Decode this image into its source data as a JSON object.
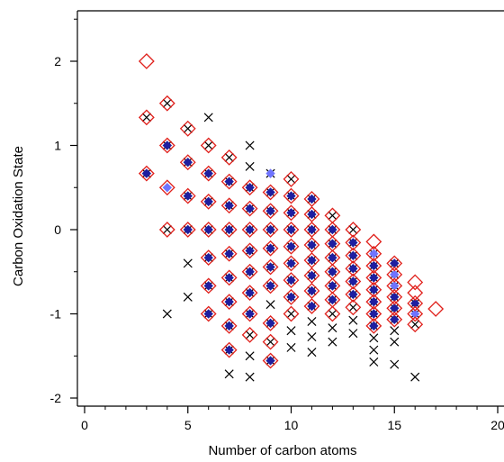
{
  "chart_data": {
    "type": "scatter",
    "title": "",
    "xlabel": "Number of carbon atoms",
    "ylabel": "Carbon Oxidation State",
    "xlim": [
      0,
      20
    ],
    "ylim": [
      -2.2,
      2.55
    ],
    "xticks": [
      0,
      5,
      10,
      15,
      20
    ],
    "xtick_labels": [
      "0",
      "5",
      "10",
      "15",
      "20"
    ],
    "yticks": [
      2,
      1,
      0,
      -1,
      -2
    ],
    "ytick_labels": [
      "2",
      "1",
      "0",
      "-1",
      "-2"
    ],
    "grid": false,
    "legend": "none",
    "colors": {
      "cross": "#000000",
      "diamond": "#e0201b",
      "filled": "#1e1ea0",
      "filled_light": "#6f74ff"
    },
    "series": [
      {
        "marker": "x",
        "color": "#000000",
        "points": [
          [
            3,
            1.333
          ],
          [
            3,
            0.667
          ],
          [
            4,
            1.5
          ],
          [
            4,
            1.0
          ],
          [
            4,
            0.0
          ],
          [
            4,
            -1.0
          ],
          [
            5,
            1.2
          ],
          [
            5,
            0.8
          ],
          [
            5,
            0.4
          ],
          [
            5,
            0.0
          ],
          [
            5,
            -0.4
          ],
          [
            5,
            -0.8
          ],
          [
            6,
            1.333
          ],
          [
            6,
            1.0
          ],
          [
            6,
            0.667
          ],
          [
            6,
            0.333
          ],
          [
            6,
            0.0
          ],
          [
            6,
            -0.333
          ],
          [
            6,
            -0.667
          ],
          [
            6,
            -1.0
          ],
          [
            7,
            0.857
          ],
          [
            7,
            0.571
          ],
          [
            7,
            0.286
          ],
          [
            7,
            0.0
          ],
          [
            7,
            -0.286
          ],
          [
            7,
            -0.571
          ],
          [
            7,
            -0.857
          ],
          [
            7,
            -1.143
          ],
          [
            7,
            -1.429
          ],
          [
            7,
            -1.714
          ],
          [
            8,
            1.0
          ],
          [
            8,
            0.75
          ],
          [
            8,
            0.5
          ],
          [
            8,
            0.25
          ],
          [
            8,
            0.0
          ],
          [
            8,
            -0.25
          ],
          [
            8,
            -0.5
          ],
          [
            8,
            -0.75
          ],
          [
            8,
            -1.0
          ],
          [
            8,
            -1.25
          ],
          [
            8,
            -1.5
          ],
          [
            8,
            -1.75
          ],
          [
            9,
            0.667
          ],
          [
            9,
            0.444
          ],
          [
            9,
            0.222
          ],
          [
            9,
            0.0
          ],
          [
            9,
            -0.222
          ],
          [
            9,
            -0.444
          ],
          [
            9,
            -0.667
          ],
          [
            9,
            -0.889
          ],
          [
            9,
            -1.111
          ],
          [
            9,
            -1.333
          ],
          [
            9,
            -1.556
          ],
          [
            10,
            0.6
          ],
          [
            10,
            0.4
          ],
          [
            10,
            0.2
          ],
          [
            10,
            0.0
          ],
          [
            10,
            -0.2
          ],
          [
            10,
            -0.4
          ],
          [
            10,
            -0.6
          ],
          [
            10,
            -0.8
          ],
          [
            10,
            -1.0
          ],
          [
            10,
            -1.2
          ],
          [
            10,
            -1.4
          ],
          [
            11,
            0.364
          ],
          [
            11,
            0.182
          ],
          [
            11,
            0.0
          ],
          [
            11,
            -0.182
          ],
          [
            11,
            -0.364
          ],
          [
            11,
            -0.545
          ],
          [
            11,
            -0.727
          ],
          [
            11,
            -0.909
          ],
          [
            11,
            -1.091
          ],
          [
            11,
            -1.273
          ],
          [
            11,
            -1.455
          ],
          [
            12,
            0.167
          ],
          [
            12,
            0.0
          ],
          [
            12,
            -0.167
          ],
          [
            12,
            -0.333
          ],
          [
            12,
            -0.5
          ],
          [
            12,
            -0.667
          ],
          [
            12,
            -0.833
          ],
          [
            12,
            -1.0
          ],
          [
            12,
            -1.167
          ],
          [
            12,
            -1.333
          ],
          [
            13,
            0.0
          ],
          [
            13,
            -0.154
          ],
          [
            13,
            -0.308
          ],
          [
            13,
            -0.462
          ],
          [
            13,
            -0.615
          ],
          [
            13,
            -0.769
          ],
          [
            13,
            -0.923
          ],
          [
            13,
            -1.077
          ],
          [
            13,
            -1.231
          ],
          [
            14,
            -0.286
          ],
          [
            14,
            -0.429
          ],
          [
            14,
            -0.571
          ],
          [
            14,
            -0.714
          ],
          [
            14,
            -0.857
          ],
          [
            14,
            -1.0
          ],
          [
            14,
            -1.143
          ],
          [
            14,
            -1.286
          ],
          [
            14,
            -1.429
          ],
          [
            14,
            -1.571
          ],
          [
            15,
            -0.4
          ],
          [
            15,
            -0.533
          ],
          [
            15,
            -0.667
          ],
          [
            15,
            -0.8
          ],
          [
            15,
            -0.933
          ],
          [
            15,
            -1.067
          ],
          [
            15,
            -1.2
          ],
          [
            15,
            -1.333
          ],
          [
            15,
            -1.6
          ],
          [
            16,
            -0.875
          ],
          [
            16,
            -1.0
          ],
          [
            16,
            -1.125
          ],
          [
            16,
            -1.75
          ]
        ]
      },
      {
        "marker": "diamond",
        "color": "#e0201b",
        "points": [
          [
            3,
            2.0
          ],
          [
            3,
            1.333
          ],
          [
            3,
            0.667
          ],
          [
            4,
            1.5
          ],
          [
            4,
            1.0
          ],
          [
            4,
            0.5
          ],
          [
            4,
            0.0
          ],
          [
            5,
            1.2
          ],
          [
            5,
            0.8
          ],
          [
            5,
            0.4
          ],
          [
            5,
            0.0
          ],
          [
            6,
            1.0
          ],
          [
            6,
            0.667
          ],
          [
            6,
            0.333
          ],
          [
            6,
            0.0
          ],
          [
            6,
            -0.333
          ],
          [
            6,
            -0.667
          ],
          [
            6,
            -1.0
          ],
          [
            7,
            0.857
          ],
          [
            7,
            0.571
          ],
          [
            7,
            0.286
          ],
          [
            7,
            0.0
          ],
          [
            7,
            -0.286
          ],
          [
            7,
            -0.571
          ],
          [
            7,
            -0.857
          ],
          [
            7,
            -1.143
          ],
          [
            7,
            -1.429
          ],
          [
            8,
            0.5
          ],
          [
            8,
            0.25
          ],
          [
            8,
            0.0
          ],
          [
            8,
            -0.25
          ],
          [
            8,
            -0.5
          ],
          [
            8,
            -0.75
          ],
          [
            8,
            -1.0
          ],
          [
            8,
            -1.25
          ],
          [
            9,
            0.444
          ],
          [
            9,
            0.222
          ],
          [
            9,
            0.0
          ],
          [
            9,
            -0.222
          ],
          [
            9,
            -0.444
          ],
          [
            9,
            -0.667
          ],
          [
            9,
            -1.111
          ],
          [
            9,
            -1.333
          ],
          [
            9,
            -1.556
          ],
          [
            10,
            0.6
          ],
          [
            10,
            0.4
          ],
          [
            10,
            0.2
          ],
          [
            10,
            0.0
          ],
          [
            10,
            -0.2
          ],
          [
            10,
            -0.4
          ],
          [
            10,
            -0.6
          ],
          [
            10,
            -0.8
          ],
          [
            10,
            -1.0
          ],
          [
            11,
            0.364
          ],
          [
            11,
            0.182
          ],
          [
            11,
            0.0
          ],
          [
            11,
            -0.182
          ],
          [
            11,
            -0.364
          ],
          [
            11,
            -0.545
          ],
          [
            11,
            -0.727
          ],
          [
            11,
            -0.909
          ],
          [
            12,
            0.167
          ],
          [
            12,
            0.0
          ],
          [
            12,
            -0.167
          ],
          [
            12,
            -0.333
          ],
          [
            12,
            -0.5
          ],
          [
            12,
            -0.667
          ],
          [
            12,
            -0.833
          ],
          [
            12,
            -1.0
          ],
          [
            13,
            0.0
          ],
          [
            13,
            -0.154
          ],
          [
            13,
            -0.308
          ],
          [
            13,
            -0.462
          ],
          [
            13,
            -0.615
          ],
          [
            13,
            -0.769
          ],
          [
            13,
            -0.923
          ],
          [
            14,
            -0.143
          ],
          [
            14,
            -0.286
          ],
          [
            14,
            -0.429
          ],
          [
            14,
            -0.571
          ],
          [
            14,
            -0.714
          ],
          [
            14,
            -0.857
          ],
          [
            14,
            -1.0
          ],
          [
            14,
            -1.143
          ],
          [
            15,
            -0.4
          ],
          [
            15,
            -0.533
          ],
          [
            15,
            -0.667
          ],
          [
            15,
            -0.8
          ],
          [
            15,
            -0.933
          ],
          [
            15,
            -1.067
          ],
          [
            16,
            -0.625
          ],
          [
            16,
            -0.75
          ],
          [
            16,
            -0.875
          ],
          [
            16,
            -1.0
          ],
          [
            16,
            -1.125
          ],
          [
            17,
            -0.941
          ]
        ]
      },
      {
        "marker": "filled-diamond",
        "color": "#1e1ea0",
        "points": [
          [
            3,
            0.667
          ],
          [
            4,
            1.0
          ],
          [
            4,
            0.5
          ],
          [
            5,
            0.8
          ],
          [
            5,
            0.4
          ],
          [
            5,
            0.0
          ],
          [
            6,
            0.667
          ],
          [
            6,
            0.333
          ],
          [
            6,
            0.0
          ],
          [
            6,
            -0.333
          ],
          [
            6,
            -0.667
          ],
          [
            6,
            -1.0
          ],
          [
            7,
            0.571
          ],
          [
            7,
            0.286
          ],
          [
            7,
            0.0
          ],
          [
            7,
            -0.286
          ],
          [
            7,
            -0.571
          ],
          [
            7,
            -0.857
          ],
          [
            7,
            -1.143
          ],
          [
            7,
            -1.429
          ],
          [
            8,
            0.5
          ],
          [
            8,
            0.25
          ],
          [
            8,
            0.0
          ],
          [
            8,
            -0.25
          ],
          [
            8,
            -0.5
          ],
          [
            8,
            -0.75
          ],
          [
            8,
            -1.0
          ],
          [
            9,
            0.667
          ],
          [
            9,
            0.444
          ],
          [
            9,
            0.222
          ],
          [
            9,
            0.0
          ],
          [
            9,
            -0.222
          ],
          [
            9,
            -0.444
          ],
          [
            9,
            -0.667
          ],
          [
            9,
            -1.111
          ],
          [
            9,
            -1.556
          ],
          [
            10,
            0.4
          ],
          [
            10,
            0.2
          ],
          [
            10,
            0.0
          ],
          [
            10,
            -0.2
          ],
          [
            10,
            -0.4
          ],
          [
            10,
            -0.6
          ],
          [
            10,
            -0.8
          ],
          [
            11,
            0.364
          ],
          [
            11,
            0.182
          ],
          [
            11,
            0.0
          ],
          [
            11,
            -0.182
          ],
          [
            11,
            -0.364
          ],
          [
            11,
            -0.545
          ],
          [
            11,
            -0.727
          ],
          [
            11,
            -0.909
          ],
          [
            12,
            0.0
          ],
          [
            12,
            -0.167
          ],
          [
            12,
            -0.333
          ],
          [
            12,
            -0.5
          ],
          [
            12,
            -0.667
          ],
          [
            12,
            -0.833
          ],
          [
            13,
            -0.154
          ],
          [
            13,
            -0.308
          ],
          [
            13,
            -0.462
          ],
          [
            13,
            -0.615
          ],
          [
            13,
            -0.769
          ],
          [
            14,
            -0.286
          ],
          [
            14,
            -0.429
          ],
          [
            14,
            -0.571
          ],
          [
            14,
            -0.714
          ],
          [
            14,
            -0.857
          ],
          [
            14,
            -1.0
          ],
          [
            14,
            -1.143
          ],
          [
            15,
            -0.4
          ],
          [
            15,
            -0.533
          ],
          [
            15,
            -0.667
          ],
          [
            15,
            -0.8
          ],
          [
            15,
            -0.933
          ],
          [
            15,
            -1.067
          ],
          [
            16,
            -0.875
          ],
          [
            16,
            -1.0
          ]
        ],
        "light_points": [
          [
            4,
            0.5
          ],
          [
            9,
            0.667
          ],
          [
            14,
            -0.286
          ],
          [
            15,
            -0.533
          ],
          [
            15,
            -0.667
          ],
          [
            16,
            -1.0
          ]
        ]
      }
    ]
  }
}
